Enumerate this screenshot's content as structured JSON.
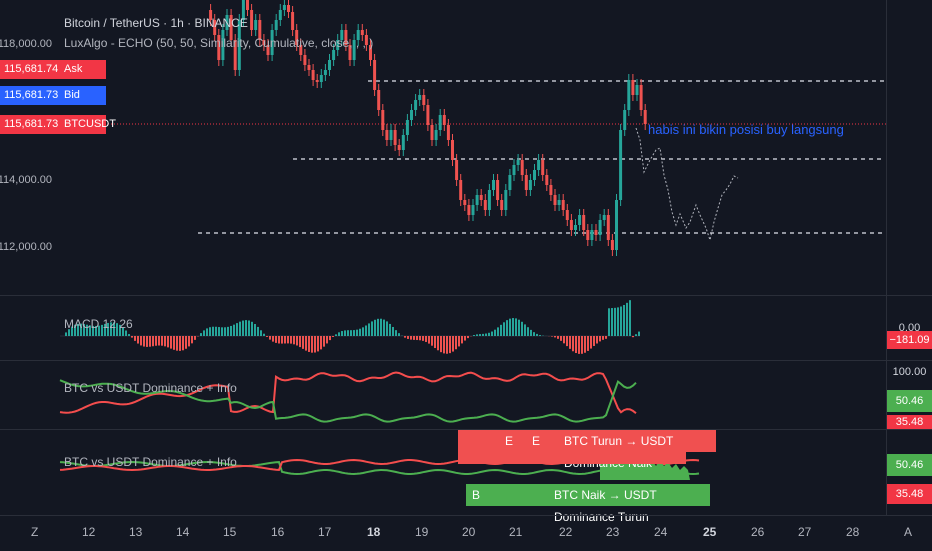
{
  "header": {
    "symbol_title": "Bitcoin / TetherUS · 1h · BINANCE",
    "indicator_title": "LuxAlgo - ECHO (50, 50, Similarity, Cumulative, close, , , )"
  },
  "price_tags": {
    "ask": {
      "value": "115,681.74",
      "label": "Ask",
      "color": "#f23645"
    },
    "bid": {
      "value": "115,681.73",
      "label": "Bid",
      "color": "#2962ff"
    },
    "last": {
      "value": "115,681.73",
      "label": "BTCUSDT",
      "color": "#f23645"
    }
  },
  "price_axis": [
    "118,000.00",
    "114,000.00",
    "112,000.00"
  ],
  "annotation": "habis ini bikin posisi buy langsung",
  "macd": {
    "legend": "MACD 12 26",
    "value_tag": "−181.09",
    "top_tag": "0.00"
  },
  "dominance_1": {
    "legend": "BTC vs USDT Dominance + Info",
    "tags": [
      "100.00",
      "50.46",
      "35.48"
    ]
  },
  "dominance_2": {
    "legend": "BTC vs USDT Dominance + Info",
    "tags": [
      "50.46",
      "35.48"
    ],
    "banner_down": "BTC Turun → USDT Dominance Naik",
    "banner_up": "BTC Naik → USDT Dominance Turun",
    "marker_e1": "E",
    "marker_e2": "E",
    "marker_b": "B"
  },
  "time_axis": {
    "left_icon": "Z",
    "right_icon": "A",
    "labels": [
      "12",
      "13",
      "14",
      "15",
      "16",
      "17",
      "18",
      "19",
      "20",
      "21",
      "22",
      "23",
      "24",
      "25",
      "26",
      "27",
      "28"
    ]
  },
  "colors": {
    "bull": "#26a69a",
    "bear": "#ef5350",
    "green_line": "#4caf50",
    "red_line": "#f44d4d"
  }
}
